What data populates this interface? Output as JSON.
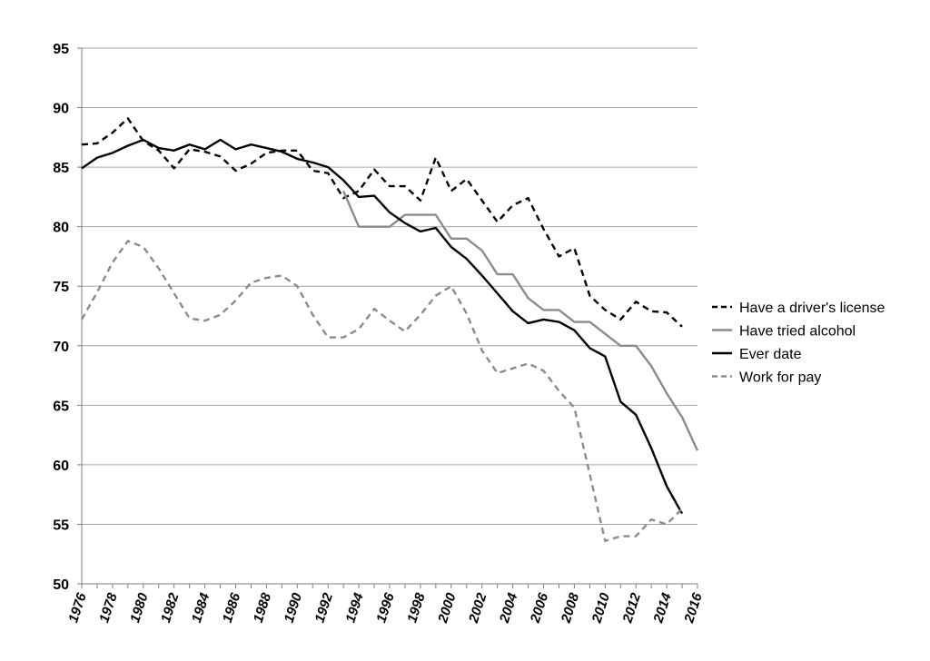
{
  "chart_data": {
    "type": "line",
    "title": "",
    "xlabel": "",
    "ylabel": "",
    "ylim": [
      50,
      95
    ],
    "xlim": [
      1976,
      2016
    ],
    "yticks": [
      "95",
      "90",
      "85",
      "80",
      "75",
      "70",
      "65",
      "60",
      "55",
      "50"
    ],
    "xticks": [
      "1976",
      "1978",
      "1980",
      "1982",
      "1984",
      "1986",
      "1988",
      "1990",
      "1992",
      "1994",
      "1996",
      "1998",
      "2000",
      "2002",
      "2004",
      "2006",
      "2008",
      "2010",
      "2012",
      "2014",
      "2016"
    ],
    "grid": "horizontal",
    "legend_position": "right",
    "series": [
      {
        "name": "Have a driver's license",
        "color": "#000000",
        "dash": "dashed",
        "x": [
          1976,
          1977,
          1978,
          1979,
          1980,
          1981,
          1982,
          1983,
          1984,
          1985,
          1986,
          1987,
          1988,
          1989,
          1990,
          1991,
          1992,
          1993,
          1994,
          1995,
          1996,
          1997,
          1998,
          1999,
          2000,
          2001,
          2002,
          2003,
          2004,
          2005,
          2006,
          2007,
          2008,
          2009,
          2010,
          2011,
          2012,
          2013,
          2014,
          2015
        ],
        "values": [
          86.9,
          87.0,
          87.9,
          89.1,
          87.2,
          86.4,
          84.9,
          86.5,
          86.3,
          85.9,
          84.7,
          85.3,
          86.2,
          86.4,
          86.4,
          84.7,
          84.5,
          82.4,
          83.0,
          84.8,
          83.4,
          83.4,
          82.2,
          85.8,
          83.0,
          84.0,
          82.2,
          80.4,
          81.8,
          82.4,
          79.8,
          77.5,
          78.2,
          74.2,
          73.0,
          72.2,
          73.7,
          72.9,
          72.8,
          71.6
        ]
      },
      {
        "name": "Have tried alcohol",
        "color": "#8c8c8c",
        "dash": "solid",
        "x": [
          1993,
          1994,
          1995,
          1996,
          1997,
          1998,
          1999,
          2000,
          2001,
          2002,
          2003,
          2004,
          2005,
          2006,
          2007,
          2008,
          2009,
          2010,
          2011,
          2012,
          2013,
          2014,
          2015,
          2016
        ],
        "values": [
          83.0,
          80.0,
          80.0,
          80.0,
          81.0,
          81.0,
          81.0,
          79.0,
          79.0,
          78.0,
          76.0,
          76.0,
          74.0,
          73.0,
          73.0,
          72.0,
          72.0,
          71.0,
          70.0,
          70.0,
          68.3,
          66.0,
          64.0,
          61.2
        ]
      },
      {
        "name": "Ever date",
        "color": "#000000",
        "dash": "solid",
        "x": [
          1976,
          1977,
          1978,
          1979,
          1980,
          1981,
          1982,
          1983,
          1984,
          1985,
          1986,
          1987,
          1988,
          1989,
          1990,
          1991,
          1992,
          1993,
          1994,
          1995,
          1996,
          1997,
          1998,
          1999,
          2000,
          2001,
          2002,
          2003,
          2004,
          2005,
          2006,
          2007,
          2008,
          2009,
          2010,
          2011,
          2012,
          2013,
          2014,
          2015
        ],
        "values": [
          84.9,
          85.8,
          86.2,
          86.8,
          87.3,
          86.6,
          86.4,
          86.9,
          86.5,
          87.3,
          86.5,
          86.9,
          86.6,
          86.3,
          85.7,
          85.4,
          85.0,
          83.9,
          82.5,
          82.6,
          81.2,
          80.3,
          79.6,
          79.9,
          78.3,
          77.3,
          75.9,
          74.4,
          72.9,
          71.9,
          72.2,
          72.0,
          71.3,
          69.8,
          69.1,
          65.3,
          64.2,
          61.4,
          58.2,
          55.9
        ]
      },
      {
        "name": "Work for pay",
        "color": "#8c8c8c",
        "dash": "dashed",
        "x": [
          1976,
          1977,
          1978,
          1979,
          1980,
          1981,
          1982,
          1983,
          1984,
          1985,
          1986,
          1987,
          1988,
          1989,
          1990,
          1991,
          1992,
          1993,
          1994,
          1995,
          1996,
          1997,
          1998,
          1999,
          2000,
          2001,
          2002,
          2003,
          2004,
          2005,
          2006,
          2007,
          2008,
          2009,
          2010,
          2011,
          2012,
          2013,
          2014,
          2015
        ],
        "values": [
          72.2,
          74.5,
          77.0,
          78.8,
          78.3,
          76.5,
          74.4,
          72.3,
          72.1,
          72.6,
          73.8,
          75.3,
          75.7,
          75.9,
          75.0,
          72.6,
          70.7,
          70.7,
          71.4,
          73.1,
          72.1,
          71.2,
          72.6,
          74.2,
          75.0,
          72.7,
          69.6,
          67.7,
          68.1,
          68.5,
          67.9,
          66.2,
          64.8,
          59.2,
          53.6,
          54.0,
          54.0,
          55.4,
          55.0,
          56.3
        ]
      }
    ]
  }
}
